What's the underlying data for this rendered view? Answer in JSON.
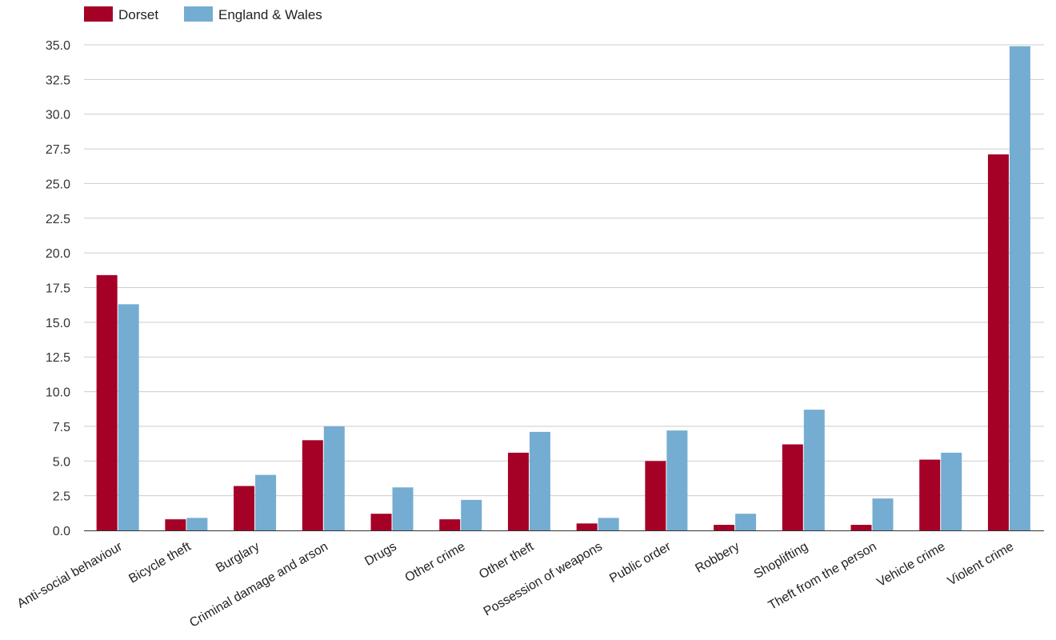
{
  "chart_data": {
    "type": "bar",
    "title": "",
    "xlabel": "",
    "ylabel": "",
    "ylim": [
      0,
      35
    ],
    "yticks": [
      "0.0",
      "2.5",
      "5.0",
      "7.5",
      "10.0",
      "12.5",
      "15.0",
      "17.5",
      "20.0",
      "22.5",
      "25.0",
      "27.5",
      "30.0",
      "32.5",
      "35.0"
    ],
    "grid": true,
    "legend_position": "top-left",
    "categories": [
      "Anti-social behaviour",
      "Bicycle theft",
      "Burglary",
      "Criminal damage and arson",
      "Drugs",
      "Other crime",
      "Other theft",
      "Possession of weapons",
      "Public order",
      "Robbery",
      "Shoplifting",
      "Theft from the person",
      "Vehicle crime",
      "Violent crime"
    ],
    "series": [
      {
        "name": "Dorset",
        "color": "#a50026",
        "values": [
          18.4,
          0.8,
          3.2,
          6.5,
          1.2,
          0.8,
          5.6,
          0.5,
          5.0,
          0.4,
          6.2,
          0.4,
          5.1,
          27.1
        ]
      },
      {
        "name": "England & Wales",
        "color": "#74add1",
        "values": [
          16.3,
          0.9,
          4.0,
          7.5,
          3.1,
          2.2,
          7.1,
          0.9,
          7.2,
          1.2,
          8.7,
          2.3,
          5.6,
          34.9
        ]
      }
    ]
  }
}
